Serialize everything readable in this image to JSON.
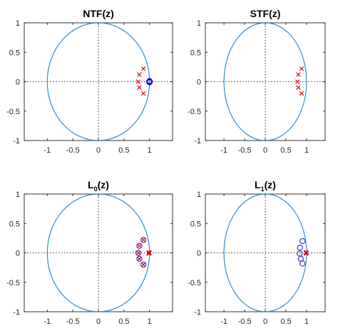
{
  "chart_data": [
    {
      "type": "scatter",
      "title": {
        "main": "NTF",
        "sub": "",
        "suffix": "(z)"
      },
      "xlim": [
        -1.45,
        1.45
      ],
      "ylim": [
        -1,
        1
      ],
      "xticks": [
        -1,
        -0.5,
        0,
        0.5,
        1
      ],
      "xtick_labels": [
        "-1",
        "-0.5",
        "0",
        "0.5",
        "1"
      ],
      "yticks": [
        -1,
        -0.5,
        0,
        0.5,
        1
      ],
      "ytick_labels": [
        "-1",
        "-0.5",
        "0",
        "0.5",
        "1"
      ],
      "unit_circle": true,
      "reference_lines": "dotted axes at x=0 and y=0",
      "series": [
        {
          "marker": "x",
          "color": "#e00000",
          "points": [
            [
              0.88,
              0.22
            ],
            [
              0.8,
              0.12
            ],
            [
              0.78,
              0.0
            ],
            [
              0.8,
              -0.1
            ],
            [
              0.88,
              -0.2
            ]
          ]
        },
        {
          "marker": "o",
          "color": "#0000e0",
          "points": [
            [
              1.0,
              0.01
            ],
            [
              1.0,
              -0.01
            ],
            [
              0.995,
              0.005
            ],
            [
              0.995,
              -0.005
            ],
            [
              1.0,
              0.0
            ]
          ]
        }
      ]
    },
    {
      "type": "scatter",
      "title": {
        "main": "STF",
        "sub": "",
        "suffix": "(z)"
      },
      "xlim": [
        -1.45,
        1.45
      ],
      "ylim": [
        -1,
        1
      ],
      "xticks": [
        -1,
        -0.5,
        0,
        0.5,
        1
      ],
      "xtick_labels": [
        "-1",
        "-0.5",
        "0",
        "0.5",
        "1"
      ],
      "yticks": [
        -1,
        -0.5,
        0,
        0.5,
        1
      ],
      "ytick_labels": [
        "-1",
        "-0.5",
        "0",
        "0.5",
        "1"
      ],
      "unit_circle": true,
      "reference_lines": "dotted axes at x=0 and y=0",
      "series": [
        {
          "marker": "x",
          "color": "#e00000",
          "points": [
            [
              0.88,
              0.22
            ],
            [
              0.8,
              0.12
            ],
            [
              0.78,
              0.0
            ],
            [
              0.8,
              -0.1
            ],
            [
              0.88,
              -0.2
            ]
          ]
        }
      ]
    },
    {
      "type": "scatter",
      "title": {
        "main": "L",
        "sub": "0",
        "suffix": "(z)"
      },
      "xlim": [
        -1.45,
        1.45
      ],
      "ylim": [
        -1,
        1
      ],
      "xticks": [
        -1,
        -0.5,
        0,
        0.5,
        1
      ],
      "xtick_labels": [
        "-1",
        "-0.5",
        "0",
        "0.5",
        "1"
      ],
      "yticks": [
        -1,
        -0.5,
        0,
        0.5,
        1
      ],
      "ytick_labels": [
        "-1",
        "-0.5",
        "0",
        "0.5",
        "1"
      ],
      "unit_circle": true,
      "reference_lines": "dotted axes at x=0 and y=0",
      "series": [
        {
          "marker": "o",
          "color": "#3a3ad0",
          "points": [
            [
              0.88,
              0.22
            ],
            [
              0.8,
              0.12
            ],
            [
              0.78,
              0.0
            ],
            [
              0.8,
              -0.1
            ],
            [
              0.88,
              -0.2
            ]
          ]
        },
        {
          "marker": "x",
          "color": "#e00000",
          "points": [
            [
              0.88,
              0.22
            ],
            [
              0.8,
              0.12
            ],
            [
              0.78,
              0.0
            ],
            [
              0.8,
              -0.1
            ],
            [
              0.88,
              -0.2
            ]
          ]
        },
        {
          "marker": "x",
          "color": "#e00000",
          "points": [
            [
              0.98,
              0.0
            ],
            [
              1.0,
              0.0
            ],
            [
              0.99,
              0.01
            ],
            [
              0.99,
              -0.01
            ]
          ]
        }
      ]
    },
    {
      "type": "scatter",
      "title": {
        "main": "L",
        "sub": "1",
        "suffix": "(z)"
      },
      "xlim": [
        -1.45,
        1.45
      ],
      "ylim": [
        -1,
        1
      ],
      "xticks": [
        -1,
        -0.5,
        0,
        0.5,
        1
      ],
      "xtick_labels": [
        "-1",
        "-0.5",
        "0",
        "0.5",
        "1"
      ],
      "yticks": [
        -1,
        -0.5,
        0,
        0.5,
        1
      ],
      "ytick_labels": [
        "-1",
        "-0.5",
        "0",
        "0.5",
        "1"
      ],
      "unit_circle": true,
      "reference_lines": "dotted axes at x=0 and y=0",
      "series": [
        {
          "marker": "o",
          "color": "#3a3ad0",
          "points": [
            [
              0.9,
              0.2
            ],
            [
              0.84,
              0.09
            ],
            [
              0.83,
              -0.01
            ],
            [
              0.86,
              -0.1
            ],
            [
              0.9,
              -0.18
            ]
          ]
        },
        {
          "marker": "x",
          "color": "#e00000",
          "points": [
            [
              0.98,
              0.0
            ],
            [
              1.0,
              0.0
            ],
            [
              0.99,
              0.01
            ],
            [
              0.99,
              -0.01
            ]
          ]
        }
      ]
    }
  ],
  "colors": {
    "circle": "#2f8fd0",
    "axes": "#000000",
    "pole": "#e00000",
    "zero": "#0000e0"
  }
}
